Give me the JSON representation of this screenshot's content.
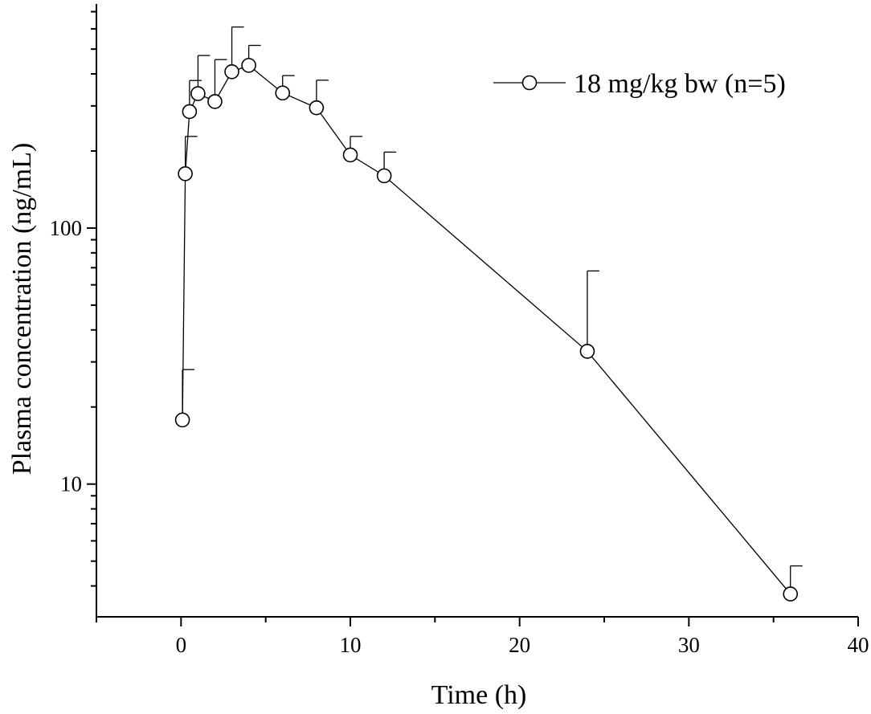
{
  "chart_data": {
    "type": "scatter",
    "xlabel": "Time (h)",
    "ylabel": "Plasma concentration (ng/mL)",
    "xlim": [
      -5,
      40
    ],
    "ylim": [
      3.03,
      750
    ],
    "y_scale": "log",
    "x_ticks": [
      0,
      10,
      20,
      30,
      40
    ],
    "y_ticks": [
      10,
      100
    ],
    "legend_position": "top-right",
    "marker": "open-circle",
    "series": [
      {
        "name": "18 mg/kg bw (n=5)",
        "x": [
          0.083,
          0.25,
          0.5,
          1,
          2,
          3,
          4,
          6,
          8,
          10,
          12,
          24,
          36
        ],
        "y": [
          17.8,
          163,
          285,
          335,
          312,
          408,
          432,
          337,
          295,
          193,
          160,
          33,
          3.72
        ],
        "error_plus": [
          10.2,
          65,
          92,
          137,
          143,
          202,
          85,
          57,
          83,
          35,
          38,
          35,
          1.07
        ]
      }
    ]
  }
}
